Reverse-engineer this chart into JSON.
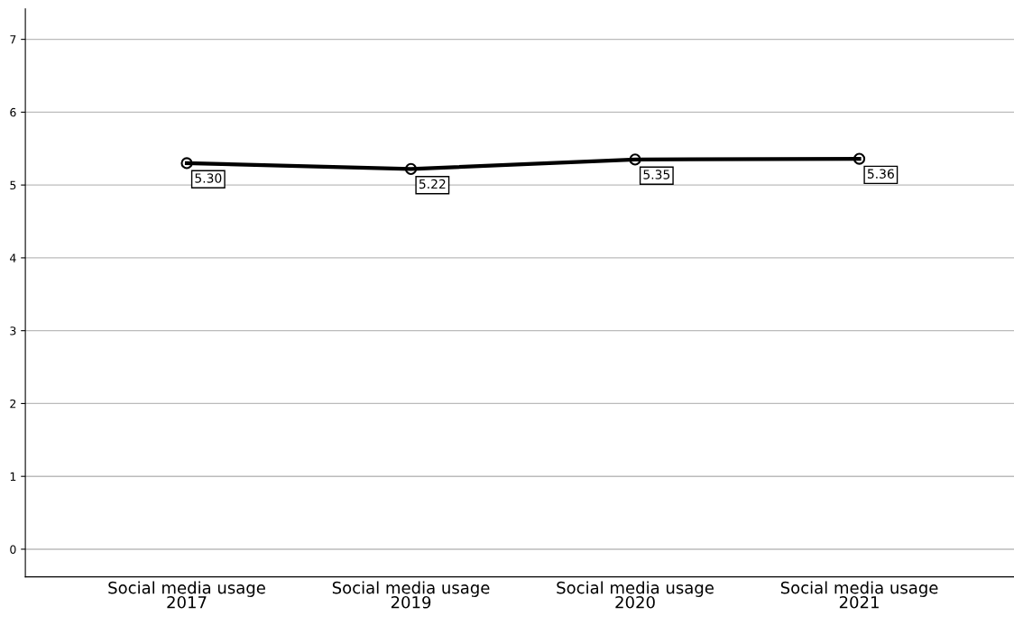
{
  "chart_data": {
    "type": "line",
    "categories": [
      "Social media usage\n2017",
      "Social media usage\n2019",
      "Social media usage\n2020",
      "Social media usage\n2021"
    ],
    "series": [
      {
        "color": "#000000",
        "values": [
          5.3,
          5.22,
          5.35,
          5.36
        ],
        "value_labels": [
          "5.30",
          "5.22",
          "5.35",
          "5.36"
        ]
      }
    ],
    "ylim": [
      -0.38,
      7.42
    ],
    "yticks": [
      0,
      1,
      2,
      3,
      4,
      5,
      6,
      7
    ],
    "grid": "y",
    "legend": false,
    "marker": "circle",
    "line_style": "solid"
  }
}
